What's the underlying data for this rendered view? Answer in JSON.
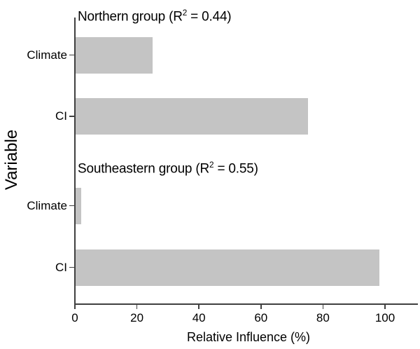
{
  "chart_data": {
    "type": "bar",
    "orientation": "horizontal",
    "title": "",
    "xlabel": "Relative Influence (%)",
    "ylabel": "Variable",
    "xlim": [
      0,
      110
    ],
    "xticks": [
      0,
      20,
      40,
      60,
      80,
      100
    ],
    "grid": false,
    "legend": "none",
    "bar_color": "#c4c4c4",
    "axis_color": "#404040",
    "text_color": "#000000",
    "panels": [
      {
        "title": "Northern group (R² = 0.44)",
        "title_parts": {
          "pre": "Northern group (R",
          "sup": "2",
          "post": " = 0.44)"
        },
        "categories": [
          "Climate",
          "CI"
        ],
        "values": [
          25,
          75
        ]
      },
      {
        "title": "Southeastern group (R² = 0.55)",
        "title_parts": {
          "pre": "Southeastern group (R",
          "sup": "2",
          "post": " = 0.55)"
        },
        "categories": [
          "Climate",
          "CI"
        ],
        "values": [
          2,
          98
        ]
      }
    ]
  }
}
